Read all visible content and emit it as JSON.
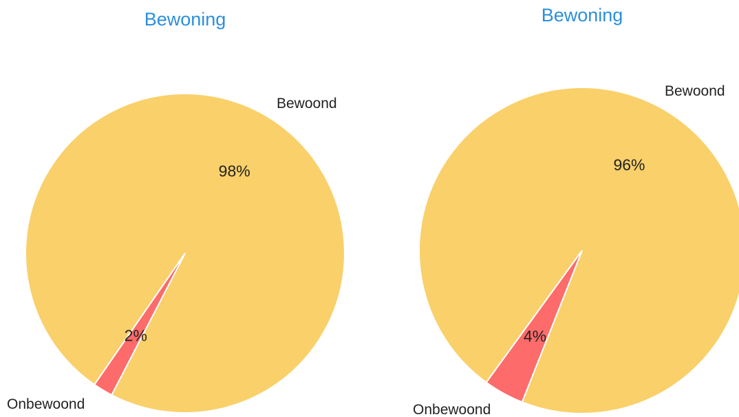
{
  "colors": {
    "title": "#2b8fdc",
    "occupied": "#f9d06a",
    "unoccupied": "#fd6b6b"
  },
  "chart_data": [
    {
      "type": "pie",
      "title": "Bewoning",
      "slices": [
        {
          "label": "Bewoond",
          "value": 98,
          "pct_label": "98%",
          "color": "#f9d06a"
        },
        {
          "label": "Onbewoond",
          "value": 2,
          "pct_label": "2%",
          "color": "#fd6b6b"
        }
      ]
    },
    {
      "type": "pie",
      "title": "Bewoning",
      "slices": [
        {
          "label": "Bewoond",
          "value": 96,
          "pct_label": "96%",
          "color": "#f9d06a"
        },
        {
          "label": "Onbewoond",
          "value": 4,
          "pct_label": "4%",
          "color": "#fd6b6b"
        }
      ]
    }
  ]
}
